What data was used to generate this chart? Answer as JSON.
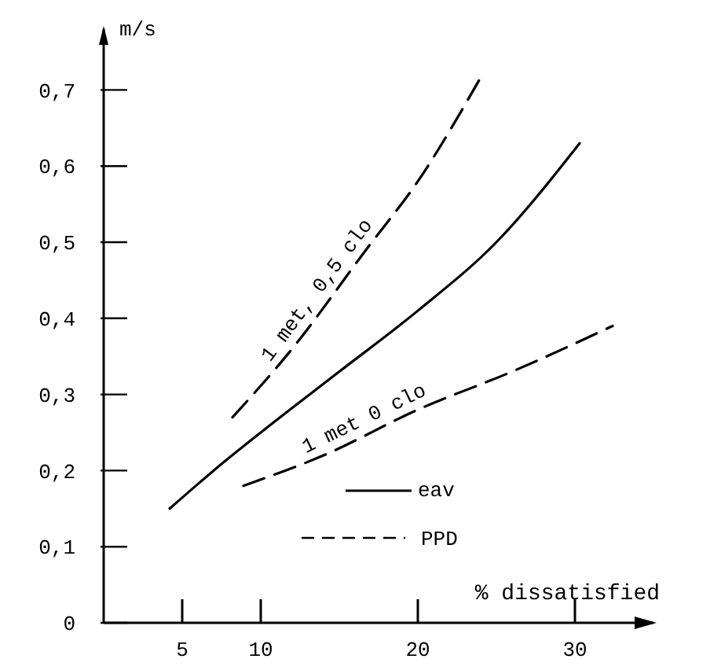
{
  "chart_data": {
    "type": "line",
    "xlabel": "% dissatisfied",
    "ylabel": "m/s",
    "xlim": [
      0,
      35
    ],
    "ylim": [
      0,
      0.78
    ],
    "xticks": [
      5,
      10,
      20,
      30
    ],
    "yticks": [
      0,
      {
        "value": 0.1,
        "label": "0,1"
      },
      {
        "value": 0.2,
        "label": "0,2"
      },
      {
        "value": 0.3,
        "label": "0,3"
      },
      {
        "value": 0.4,
        "label": "0,4"
      },
      {
        "value": 0.5,
        "label": "0,5"
      },
      {
        "value": 0.6,
        "label": "0,6"
      },
      {
        "value": 0.7,
        "label": "0,7"
      }
    ],
    "grid": false,
    "marker": "none",
    "legend": "bottom",
    "annotations": [
      "PPD"
    ],
    "series": [
      {
        "name": "eav",
        "color": "#000000",
        "line_style": "solid",
        "x": [
          4.2,
          7,
          10,
          15,
          20,
          25,
          30.3
        ],
        "values": [
          0.15,
          0.2,
          0.25,
          0.33,
          0.41,
          0.5,
          0.63
        ]
      },
      {
        "name": "1 met, 0,5 clo",
        "color": "#000000",
        "line_style": "dashed",
        "x": [
          8.2,
          12,
          16.7,
          20,
          24.1
        ],
        "values": [
          0.27,
          0.36,
          0.49,
          0.58,
          0.72
        ]
      },
      {
        "name": "1 met 0 clo",
        "color": "#000000",
        "line_style": "dashed",
        "x": [
          8.9,
          14,
          20,
          26,
          32.4
        ],
        "values": [
          0.18,
          0.22,
          0.28,
          0.33,
          0.39
        ]
      }
    ]
  }
}
